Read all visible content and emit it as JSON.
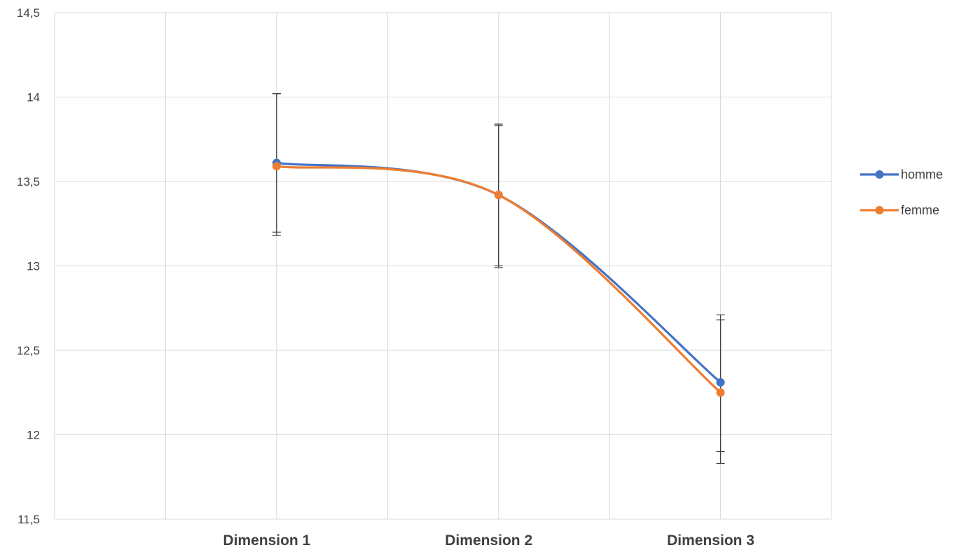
{
  "chart_data": {
    "type": "line",
    "title": "",
    "xlabel": "",
    "ylabel": "",
    "categories": [
      "Dimension 1",
      "Dimension 2",
      "Dimension 3"
    ],
    "ylim": [
      11.5,
      14.5
    ],
    "ytick_labels": [
      "11,5",
      "12",
      "12,5",
      "13",
      "13,5",
      "14",
      "14,5"
    ],
    "ytick_values": [
      11.5,
      12,
      12.5,
      13,
      13.5,
      14,
      14.5
    ],
    "grid": true,
    "smooth": true,
    "legend_position": "right",
    "series": [
      {
        "name": "homme",
        "color": "#4472C4",
        "values": [
          13.61,
          13.42,
          12.31
        ],
        "error_low": [
          13.2,
          13.0,
          11.9
        ],
        "error_high": [
          14.02,
          13.84,
          12.71
        ]
      },
      {
        "name": "femme",
        "color": "#ED7D31",
        "values": [
          13.59,
          13.42,
          12.25
        ],
        "error_low": [
          13.18,
          12.99,
          11.83
        ],
        "error_high": [
          14.02,
          13.83,
          12.68
        ]
      }
    ]
  }
}
